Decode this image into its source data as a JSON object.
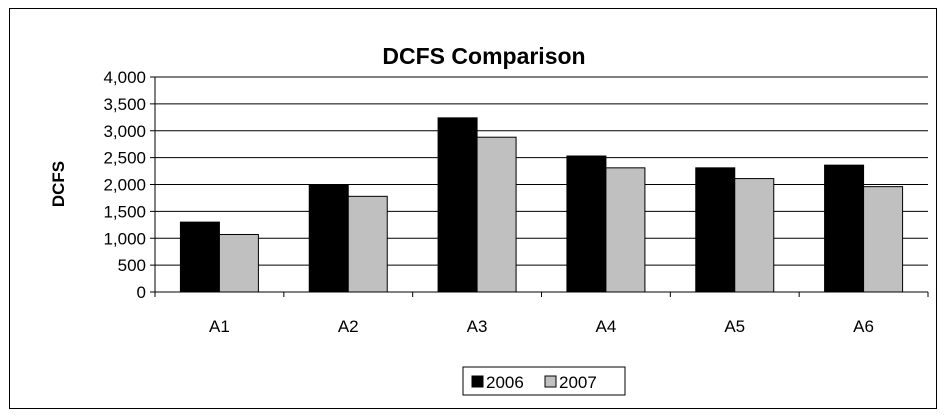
{
  "chart_data": {
    "type": "bar",
    "title": "DCFS Comparison",
    "xlabel": "",
    "ylabel": "DCFS",
    "categories": [
      "A1",
      "A2",
      "A3",
      "A4",
      "A5",
      "A6"
    ],
    "series": [
      {
        "name": "2006",
        "color": "#000000",
        "values": [
          1300,
          1990,
          3240,
          2530,
          2310,
          2360
        ]
      },
      {
        "name": "2007",
        "color": "#c0c0c0",
        "values": [
          1070,
          1780,
          2880,
          2310,
          2110,
          1960
        ]
      }
    ],
    "ylim": [
      0,
      4000
    ],
    "yticks": [
      "0",
      "500",
      "1,000",
      "1,500",
      "2,000",
      "2,500",
      "3,000",
      "3,500",
      "4,000"
    ],
    "grid": true,
    "legend_position": "bottom"
  }
}
